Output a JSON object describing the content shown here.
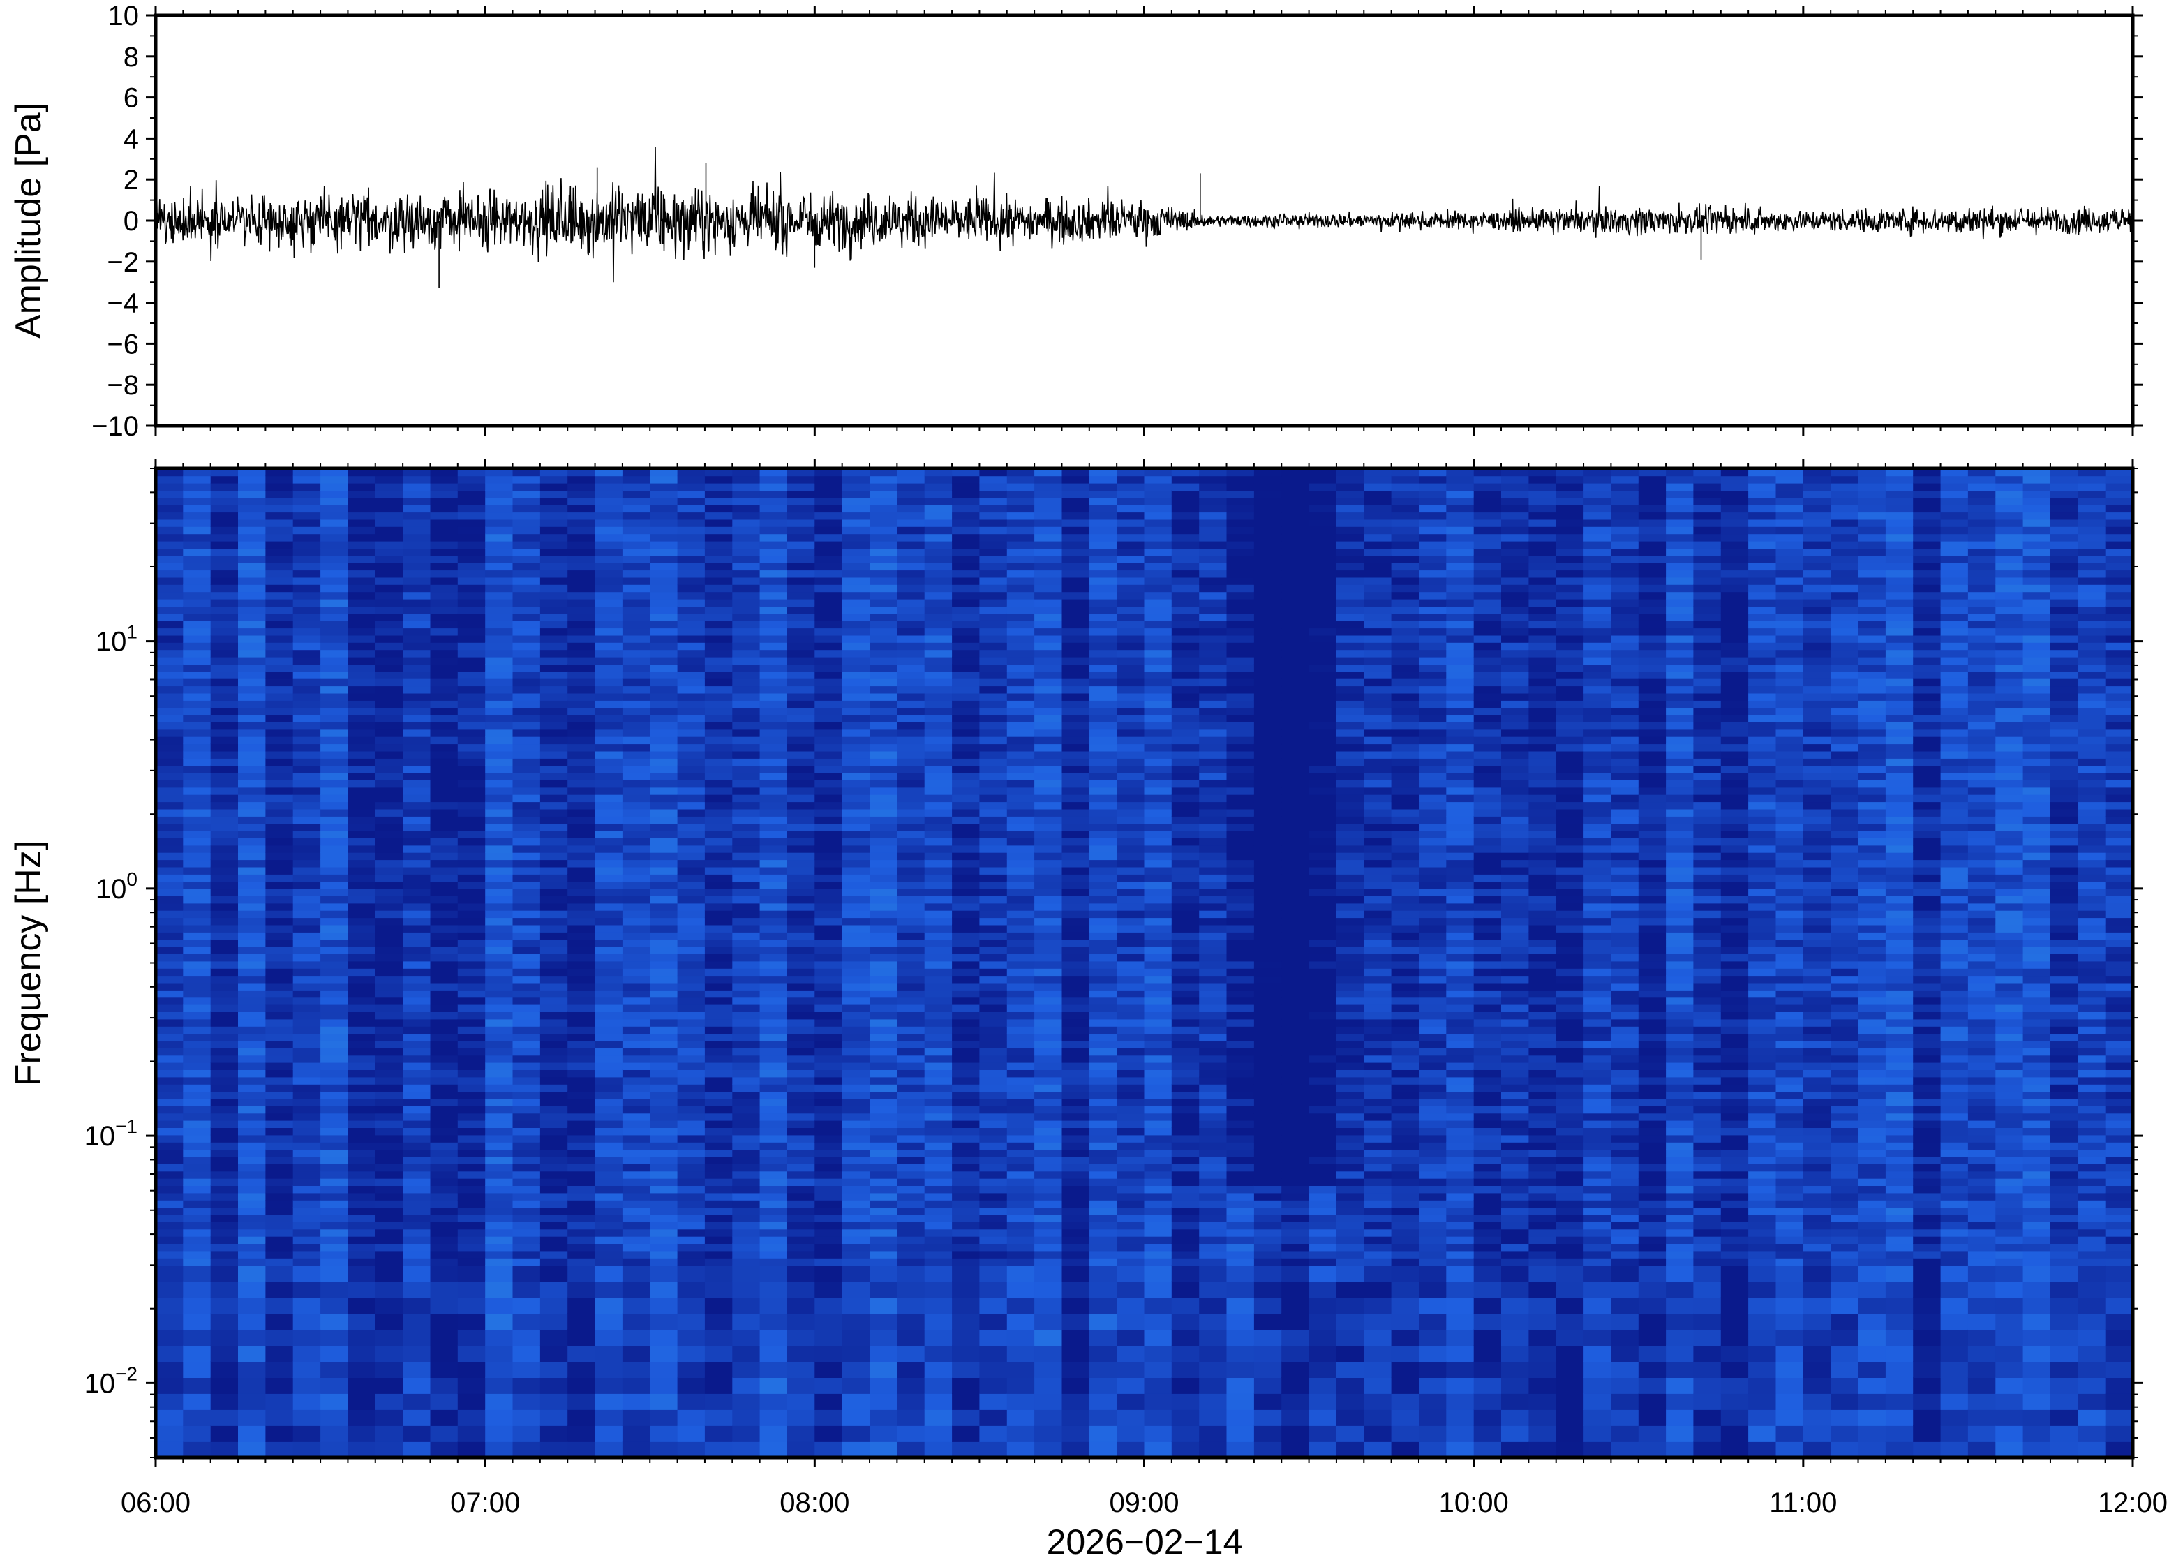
{
  "chart_data": [
    {
      "type": "line",
      "panel": "waveform",
      "ylabel": "Amplitude [Pa]",
      "ylim": [
        -10,
        10
      ],
      "yticks": [
        10,
        8,
        6,
        4,
        2,
        0,
        -2,
        -4,
        -6,
        -8,
        -10
      ],
      "ytick_labels": [
        "10",
        "8",
        "6",
        "4",
        "2",
        "0",
        "−2",
        "−4",
        "−6",
        "−8",
        "−10"
      ],
      "xlim": [
        "06:00",
        "12:00"
      ],
      "grid": false,
      "line_color": "#000000",
      "envelope": {
        "hours": [
          6.0,
          6.5,
          7.0,
          7.3,
          7.6,
          8.0,
          8.5,
          9.0,
          9.2,
          9.5,
          10.0,
          10.5,
          11.0,
          11.5,
          12.0
        ],
        "abs_amplitude": [
          1.2,
          1.5,
          1.6,
          2.0,
          1.8,
          1.6,
          1.3,
          1.1,
          0.3,
          0.4,
          0.5,
          0.8,
          0.6,
          0.8,
          0.7
        ]
      },
      "peaks": [
        {
          "hour": 6.86,
          "value": -3.3
        },
        {
          "hour": 7.34,
          "value": 2.6
        },
        {
          "hour": 7.67,
          "value": 2.8
        },
        {
          "hour": 8.0,
          "value": -2.3
        },
        {
          "hour": 9.17,
          "value": 2.3
        },
        {
          "hour": 10.69,
          "value": -1.9
        }
      ]
    },
    {
      "type": "heatmap",
      "panel": "spectrogram",
      "ylabel": "Frequency [Hz]",
      "yscale": "log",
      "ylim": [
        0.005,
        50
      ],
      "yticks": [
        {
          "mantissa": "10",
          "exponent": "1"
        },
        {
          "mantissa": "10",
          "exponent": "0"
        },
        {
          "mantissa": "10",
          "exponent": "−1"
        },
        {
          "mantissa": "10",
          "exponent": "−2"
        }
      ],
      "xlabel": "2026−02−14",
      "xticks": [
        "06:00",
        "07:00",
        "08:00",
        "09:00",
        "10:00",
        "11:00",
        "12:00"
      ],
      "colormap": [
        "#0a1a8c",
        "#1f5fe0",
        "#2f9ae6",
        "#45cfe8",
        "#7ee6b6",
        "#c8f29a",
        "#f6f08e",
        "#f9c86a",
        "#f39548",
        "#ec6a47",
        "#e2444d"
      ],
      "break_time": "09:13",
      "before_break_profile": {
        "frequency_hz": [
          50,
          20,
          10,
          5,
          2,
          1,
          0.5,
          0.2,
          0.1,
          0.05,
          0.03,
          0.015,
          0.008
        ],
        "level": [
          0.05,
          0.2,
          0.33,
          0.45,
          0.6,
          0.68,
          0.78,
          0.92,
          0.95,
          0.9,
          0.72,
          0.52,
          0.38
        ]
      },
      "after_break_profile": {
        "frequency_hz": [
          50,
          20,
          10,
          5,
          2,
          1,
          0.5,
          0.2,
          0.1,
          0.05,
          0.03,
          0.015,
          0.008
        ],
        "level": [
          0.05,
          0.13,
          0.25,
          0.35,
          0.45,
          0.55,
          0.63,
          0.76,
          0.84,
          0.86,
          0.7,
          0.5,
          0.36
        ]
      }
    }
  ]
}
